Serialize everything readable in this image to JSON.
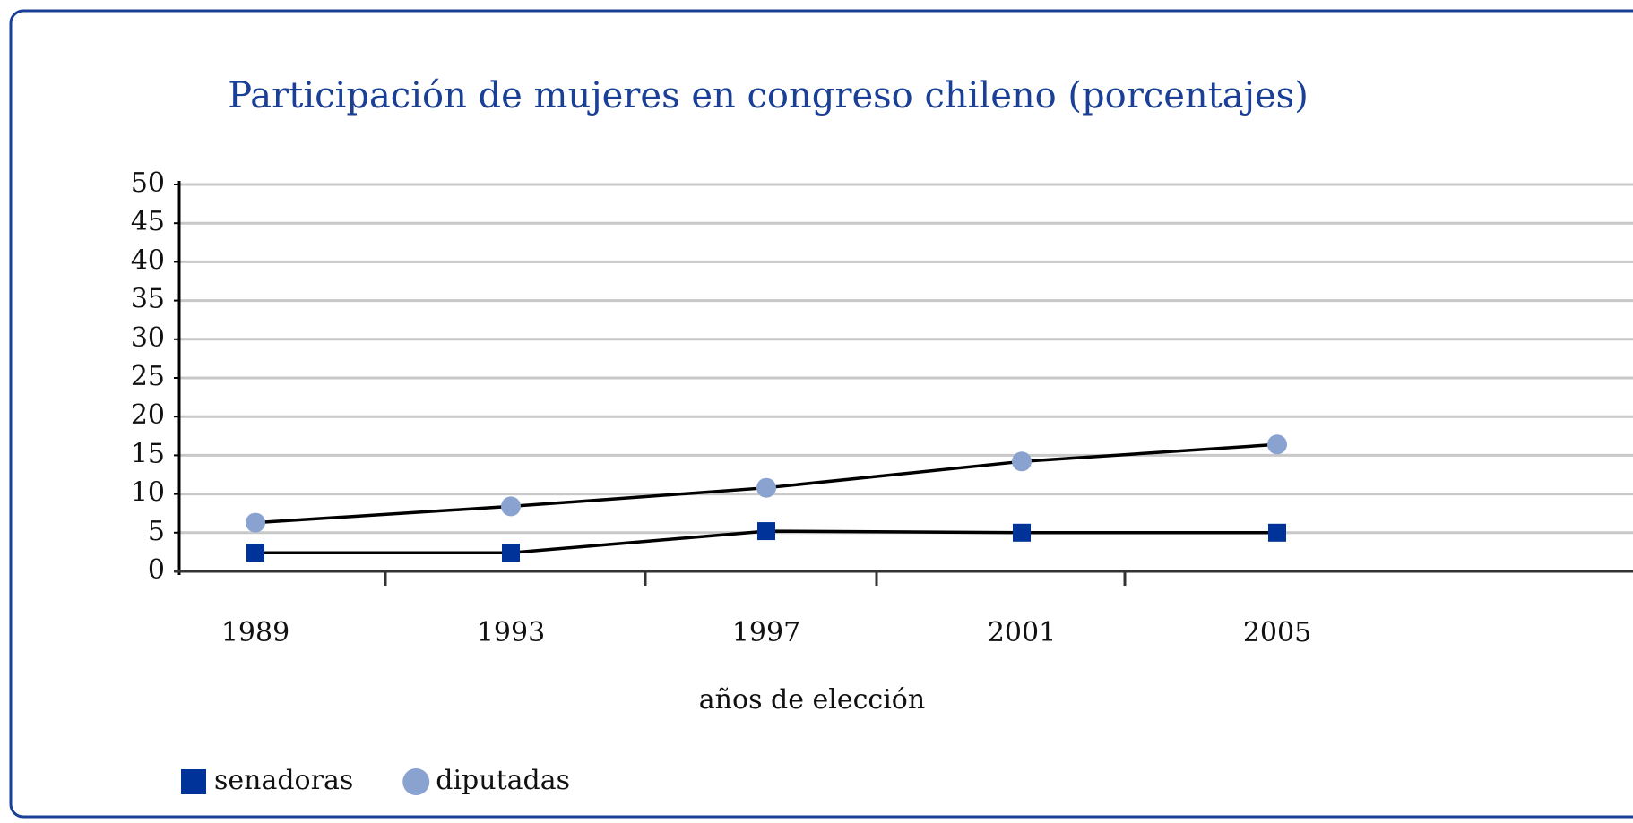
{
  "chart_data": {
    "type": "line",
    "title": "Participación de mujeres en congreso chileno (porcentajes)",
    "x_label": "años de elección",
    "categories": [
      "1989",
      "1993",
      "1997",
      "2001",
      "2005"
    ],
    "series": [
      {
        "name": "senadoras",
        "color": "#003399",
        "marker": "square",
        "values": [
          2.4,
          2.4,
          5.2,
          5.0,
          5.0
        ]
      },
      {
        "name": "diputadas",
        "color": "#8aa2d0",
        "marker": "circle",
        "values": [
          6.3,
          8.4,
          10.8,
          14.2,
          16.4
        ]
      }
    ],
    "line_color": "#000000",
    "ylim": [
      0,
      50
    ],
    "yticks": [
      0,
      5,
      10,
      15,
      20,
      25,
      30,
      35,
      40,
      45,
      50
    ],
    "grid": true
  }
}
